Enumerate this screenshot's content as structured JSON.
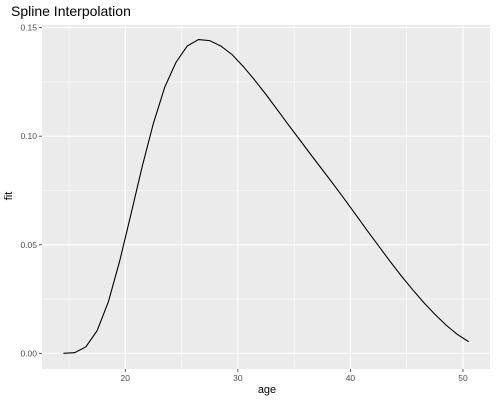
{
  "chart_data": {
    "type": "line",
    "title": "Spline Interpolation",
    "xlabel": "age",
    "ylabel": "fit",
    "xlim": [
      12.6,
      52.4
    ],
    "ylim": [
      -0.0072,
      0.1512
    ],
    "x_ticks": [
      20,
      30,
      40,
      50
    ],
    "x_minor_ticks": [
      15,
      25,
      35,
      45
    ],
    "y_ticks": [
      0.0,
      0.05,
      0.1,
      0.15
    ],
    "y_minor_ticks": [
      0.025,
      0.075,
      0.125
    ],
    "x_tick_labels": [
      "20",
      "30",
      "40",
      "50"
    ],
    "y_tick_labels": [
      "0.00",
      "0.05",
      "0.10",
      "0.15"
    ],
    "grid": true,
    "theme": "grey-panel",
    "colors": {
      "panel": "#ebebeb",
      "grid": "#ffffff",
      "line": "#000000"
    },
    "series": [
      {
        "x": [
          14.5,
          15.5,
          16.5,
          17.5,
          18.5,
          19.5,
          20.5,
          21.5,
          22.5,
          23.5,
          24.5,
          25.5,
          26.5,
          27.5,
          28.5,
          29.5,
          30.5,
          31.5,
          32.5,
          33.5,
          34.5,
          35.5,
          36.5,
          37.5,
          38.5,
          39.5,
          40.5,
          41.5,
          42.5,
          43.5,
          44.5,
          45.5,
          46.5,
          47.5,
          48.5,
          49.5,
          50.5
        ],
        "y": [
          0.0,
          0.0003,
          0.003,
          0.0105,
          0.0238,
          0.0425,
          0.064,
          0.086,
          0.106,
          0.1225,
          0.134,
          0.1415,
          0.1445,
          0.144,
          0.1415,
          0.1375,
          0.132,
          0.1258,
          0.1192,
          0.1122,
          0.1052,
          0.0983,
          0.0914,
          0.0846,
          0.0778,
          0.0708,
          0.0637,
          0.0565,
          0.0495,
          0.0425,
          0.0358,
          0.0295,
          0.0235,
          0.018,
          0.013,
          0.0087,
          0.0054
        ]
      }
    ]
  }
}
